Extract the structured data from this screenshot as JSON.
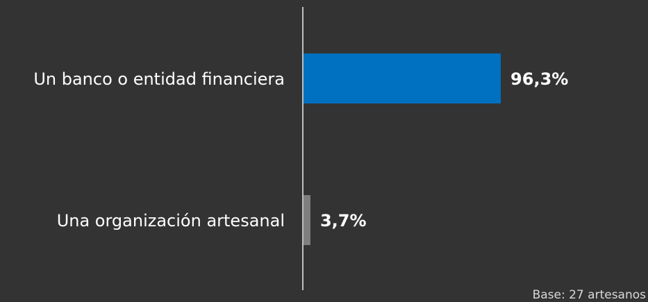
{
  "chart_data": {
    "type": "bar",
    "orientation": "horizontal",
    "categories": [
      "Un banco o entidad financiera",
      "Una organización artesanal"
    ],
    "values": [
      96.3,
      3.7
    ],
    "value_labels": [
      "96,3%",
      "3,7%"
    ],
    "bar_colors": [
      "#0070C0",
      "#7F7F7F"
    ],
    "xlim": [
      0,
      100
    ],
    "grid": false,
    "legend": "none",
    "footnote": "Base: 27 artesanos"
  },
  "colors": {
    "background": "#333333",
    "axis": "#bfbfbf"
  }
}
